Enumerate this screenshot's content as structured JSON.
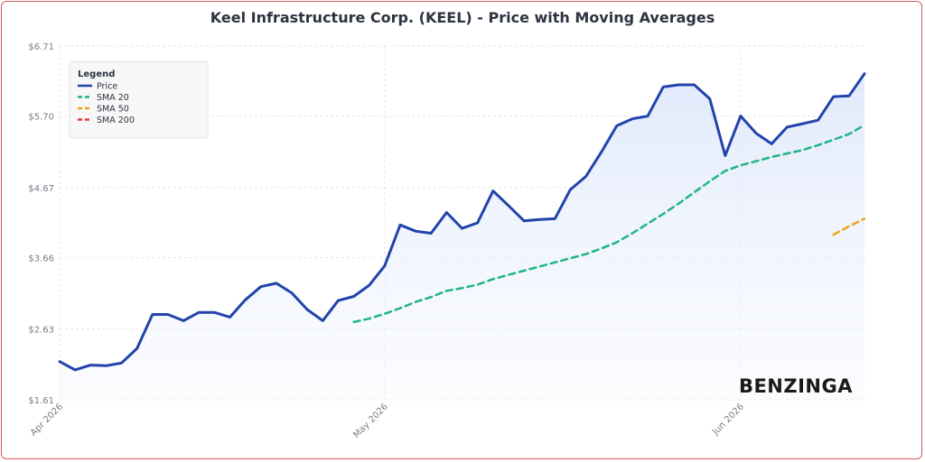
{
  "chart_data": {
    "type": "line",
    "title": "Keel Infrastructure Corp. (KEEL) - Price with Moving Averages",
    "xlabel": "",
    "ylabel": "",
    "x_ticks": [
      "Apr 2026",
      "May 2026",
      "Jun 2026"
    ],
    "y_ticks": [
      "$6.71",
      "$5.70",
      "$4.67",
      "$3.66",
      "$2.63",
      "$1.61"
    ],
    "ylim": [
      1.61,
      6.71
    ],
    "grid": true,
    "legend": {
      "title": "Legend",
      "position": "top-left",
      "entries": [
        "Price",
        "SMA 20",
        "SMA 50",
        "SMA 200"
      ]
    },
    "watermark": "BENZINGA",
    "series": [
      {
        "name": "Price",
        "color": "#2244aa",
        "style": "solid",
        "x": [
          0,
          1,
          2,
          3,
          4,
          5,
          6,
          7,
          8,
          9,
          10,
          11,
          12,
          13,
          14,
          15,
          16,
          17,
          18,
          19,
          20,
          21,
          22,
          23,
          24,
          25,
          26,
          27,
          28,
          29,
          30,
          31,
          32,
          33,
          34,
          35,
          36,
          37,
          38,
          39,
          40,
          41,
          42,
          43,
          44,
          45,
          46,
          47,
          48,
          49,
          50,
          51,
          52
        ],
        "values": [
          2.16,
          2.04,
          2.11,
          2.1,
          2.14,
          2.35,
          2.84,
          2.84,
          2.75,
          2.87,
          2.87,
          2.8,
          3.05,
          3.24,
          3.29,
          3.15,
          2.91,
          2.75,
          3.04,
          3.1,
          3.26,
          3.54,
          4.13,
          4.04,
          4.01,
          4.31,
          4.08,
          4.16,
          4.62,
          4.41,
          4.19,
          4.21,
          4.22,
          4.64,
          4.83,
          5.18,
          5.56,
          5.66,
          5.7,
          6.12,
          6.15,
          6.15,
          5.95,
          5.13,
          5.7,
          5.45,
          5.3,
          5.54,
          5.59,
          5.64,
          5.98,
          5.99,
          6.31
        ]
      },
      {
        "name": "SMA 20",
        "color": "#1fb583",
        "style": "dashed",
        "x": [
          19,
          20,
          21,
          22,
          23,
          24,
          25,
          26,
          27,
          28,
          29,
          30,
          31,
          32,
          33,
          34,
          35,
          36,
          37,
          38,
          39,
          40,
          41,
          42,
          43,
          44,
          45,
          46,
          47,
          48,
          49,
          50,
          51,
          52
        ],
        "values": [
          2.73,
          2.78,
          2.85,
          2.93,
          3.02,
          3.09,
          3.18,
          3.22,
          3.27,
          3.35,
          3.41,
          3.47,
          3.53,
          3.59,
          3.65,
          3.71,
          3.79,
          3.88,
          4.01,
          4.15,
          4.29,
          4.44,
          4.6,
          4.76,
          4.91,
          4.99,
          5.05,
          5.11,
          5.16,
          5.21,
          5.28,
          5.36,
          5.44,
          5.57
        ]
      },
      {
        "name": "SMA 50",
        "color": "#f5a01a",
        "style": "dashed",
        "x": [
          50,
          51,
          52
        ],
        "values": [
          3.99,
          4.11,
          4.22
        ]
      },
      {
        "name": "SMA 200",
        "color": "#e53935",
        "style": "dashed",
        "x": [],
        "values": []
      }
    ]
  }
}
